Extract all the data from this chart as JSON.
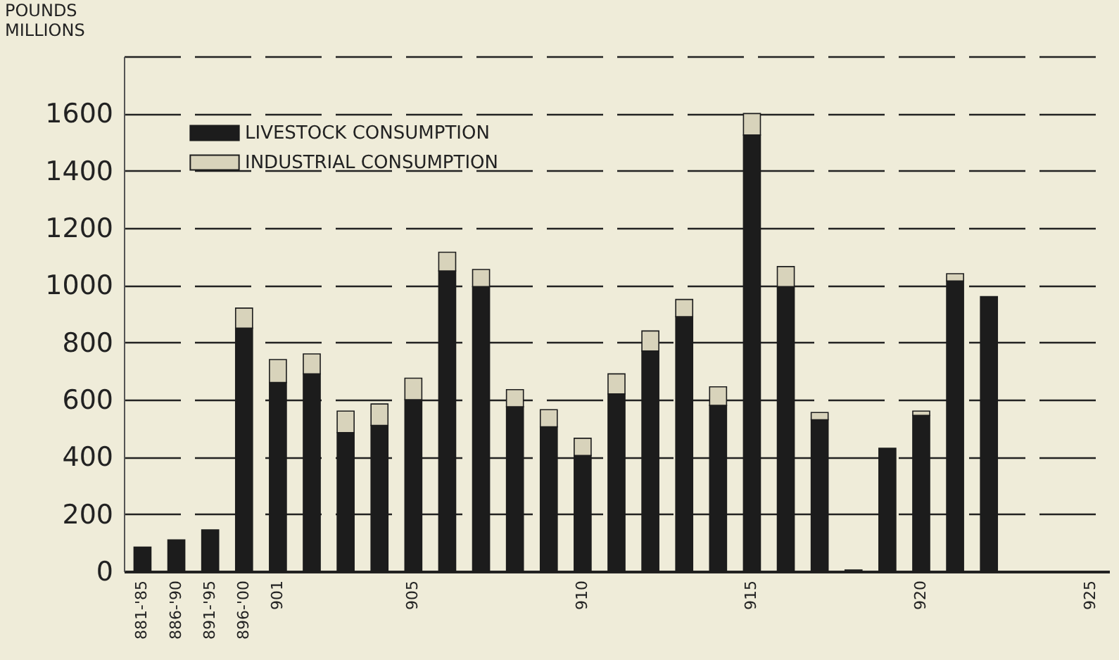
{
  "chart_data": {
    "type": "bar",
    "stacked": true,
    "ylabel": "POUNDS MILLIONS",
    "categories": [
      "881-'85",
      "886-'90",
      "891-'95",
      "896-'00",
      "901",
      null,
      null,
      null,
      "905",
      null,
      null,
      null,
      null,
      "910",
      null,
      null,
      null,
      null,
      "915",
      null,
      null,
      null,
      null,
      "920",
      null,
      null,
      null,
      null,
      "925"
    ],
    "series": [
      {
        "name": "LIVESTOCK CONSUMPTION",
        "color": "#1c1c1c",
        "values": [
          85,
          110,
          145,
          850,
          660,
          690,
          485,
          510,
          600,
          1050,
          995,
          575,
          505,
          405,
          620,
          770,
          890,
          580,
          1525,
          995,
          530,
          5,
          430,
          545,
          1015,
          960,
          null,
          null,
          null
        ]
      },
      {
        "name": "INDUSTRIAL CONSUMPTION",
        "color": "#d8d3bb",
        "values": [
          null,
          null,
          null,
          70,
          80,
          70,
          75,
          75,
          75,
          65,
          60,
          60,
          60,
          60,
          70,
          70,
          60,
          65,
          75,
          70,
          25,
          null,
          null,
          15,
          25,
          null,
          null,
          null,
          null
        ]
      }
    ],
    "ylim": [
      0,
      1800
    ],
    "yticks": [
      0,
      200,
      400,
      600,
      800,
      1000,
      1200,
      1400,
      1600,
      {
        "value": 1800,
        "label": null
      }
    ],
    "grid": "y",
    "legend": "top left"
  }
}
